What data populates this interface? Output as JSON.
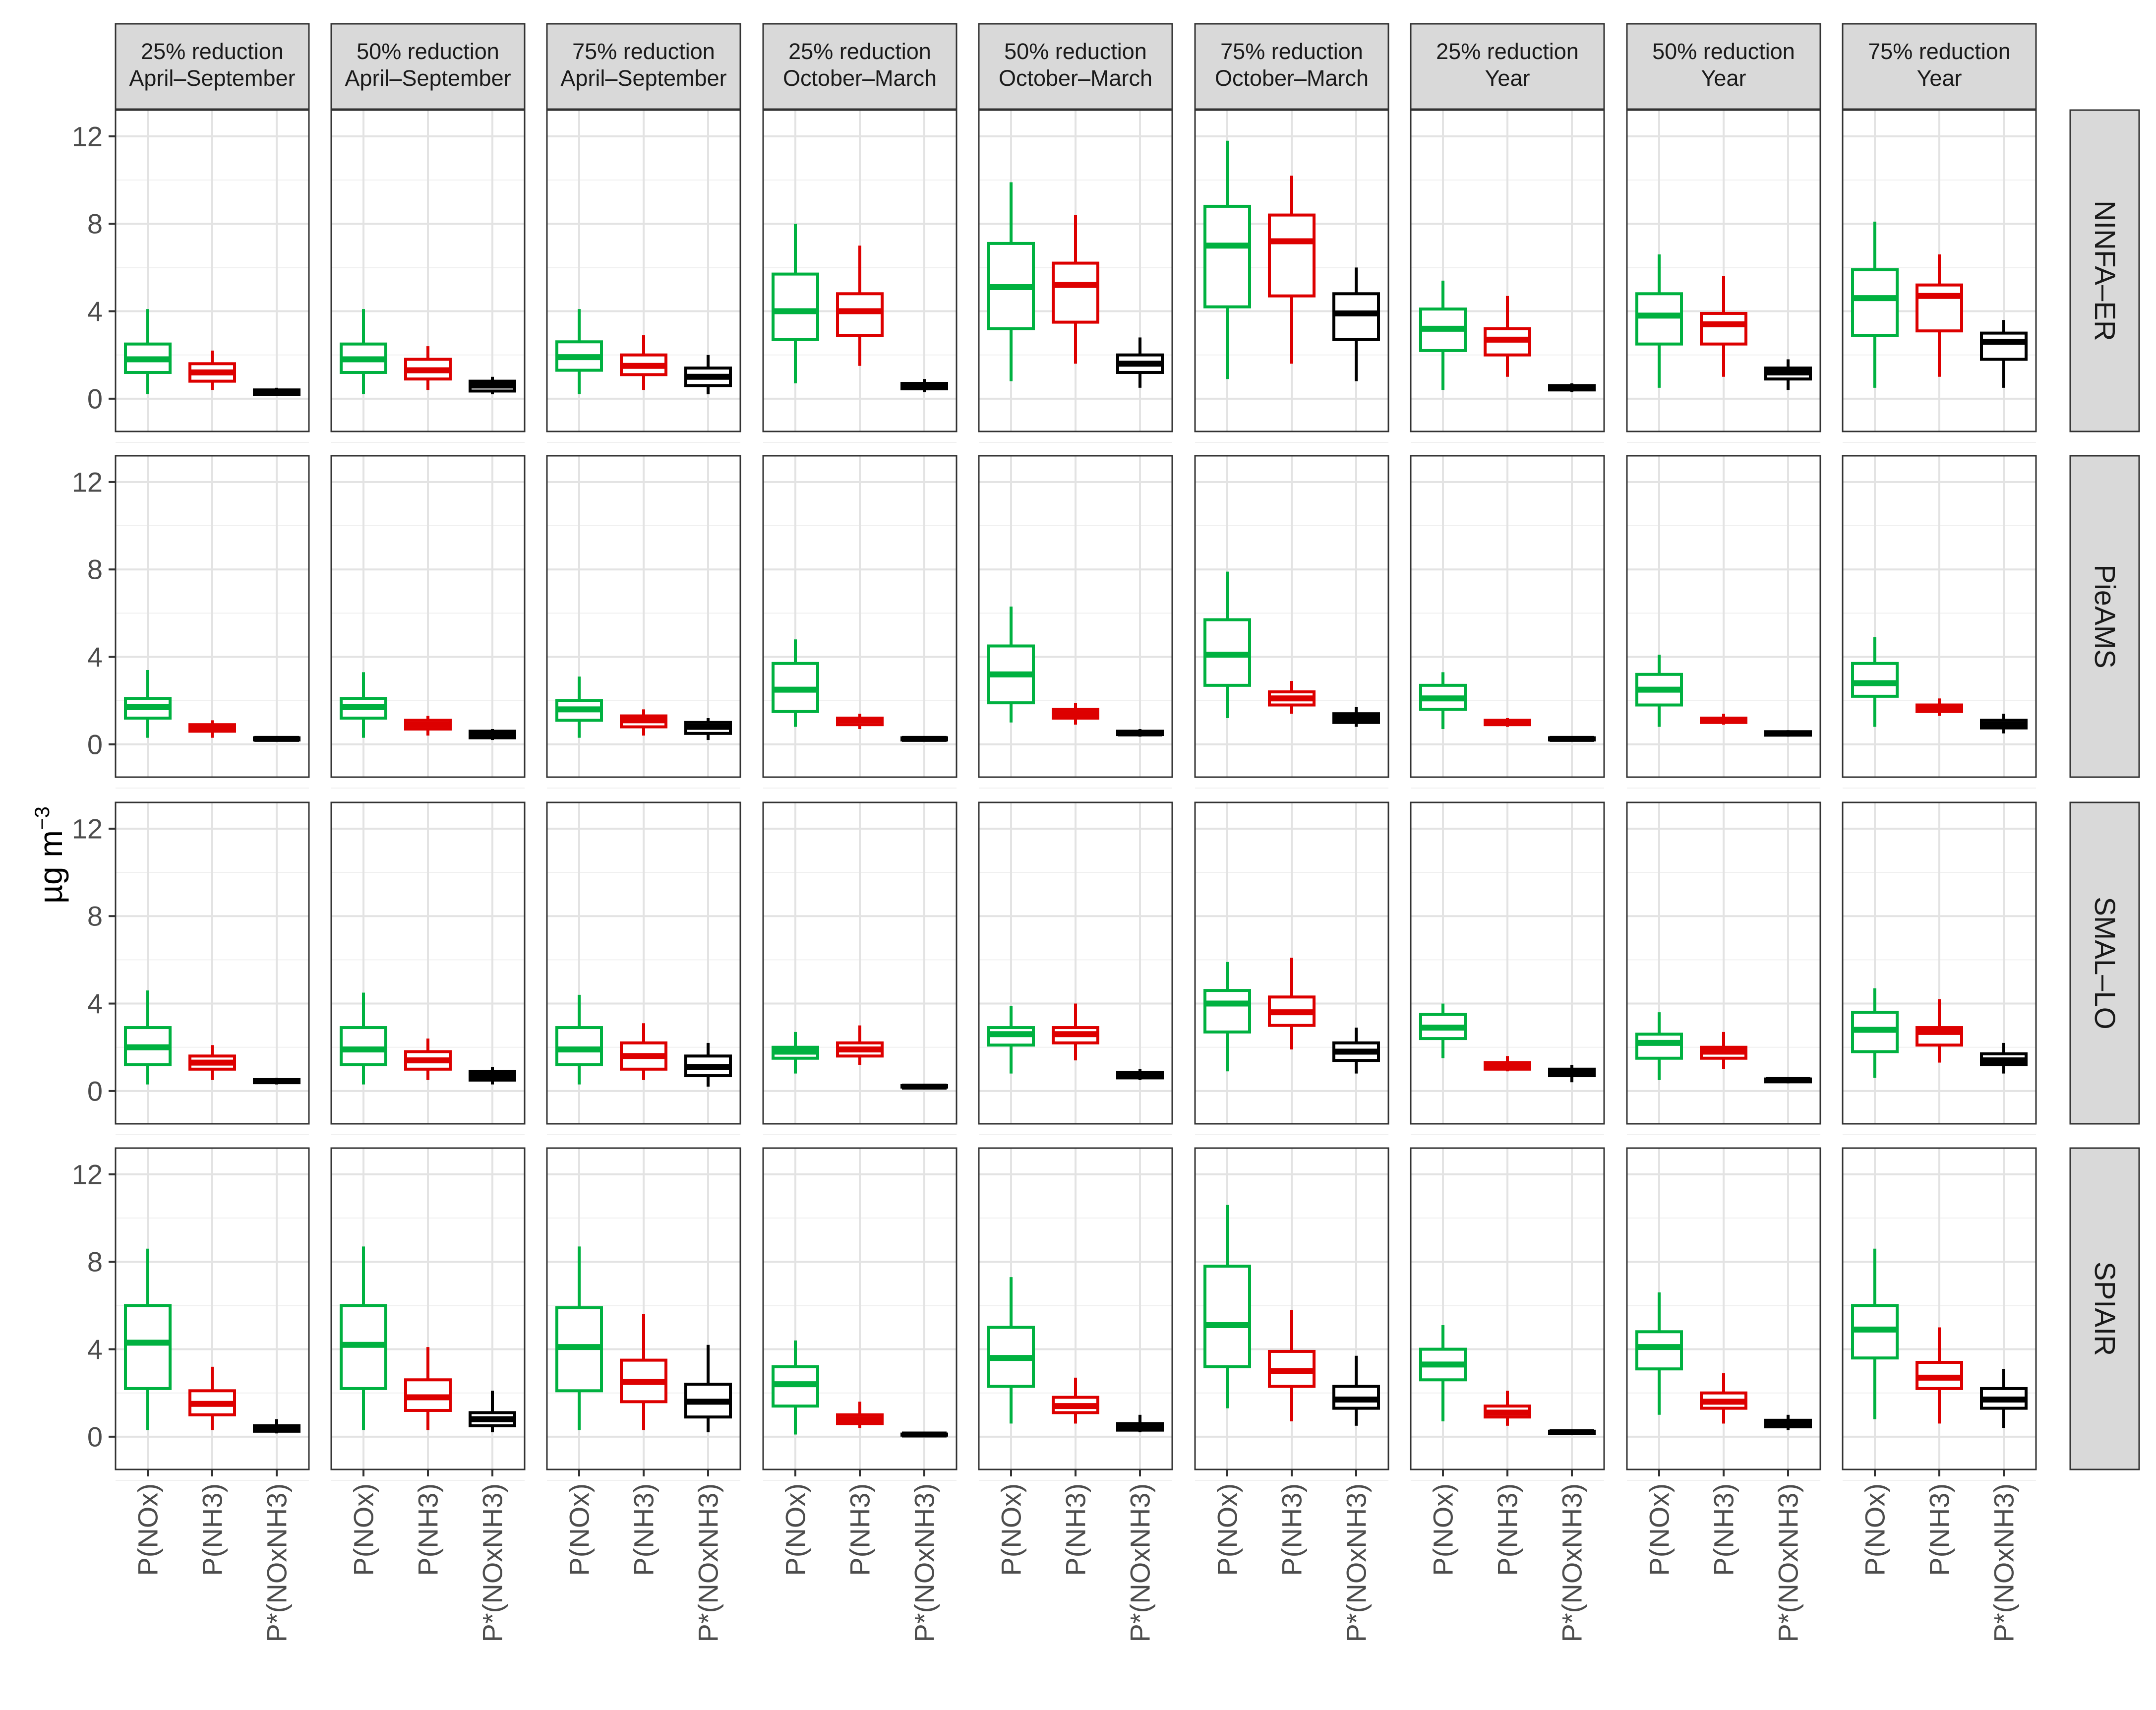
{
  "chart_data": {
    "type": "boxplot",
    "ylabel": "µg m",
    "ylabel_superscript": "−3",
    "ylim": [
      -1.5,
      13.2
    ],
    "yticks": [
      0,
      4,
      8,
      12
    ],
    "grid": true,
    "categories": [
      "P(NOx)",
      "P(NH3)",
      "P*(NOxNH3)"
    ],
    "colors": {
      "P(NOx)": "#00b140",
      "P(NH3)": "#dd0000",
      "P*(NOxNH3)": "#000000"
    },
    "columns": [
      [
        "25% reduction",
        "April–September"
      ],
      [
        "50% reduction",
        "April–September"
      ],
      [
        "75% reduction",
        "April–September"
      ],
      [
        "25% reduction",
        "October–March"
      ],
      [
        "50% reduction",
        "October–March"
      ],
      [
        "75% reduction",
        "October–March"
      ],
      [
        "25% reduction",
        "Year"
      ],
      [
        "50% reduction",
        "Year"
      ],
      [
        "75% reduction",
        "Year"
      ]
    ],
    "rows": [
      "NINFA–ER",
      "PieAMS",
      "SMAL–LO",
      "SPIAIR"
    ],
    "box_format": "[whisker_low, q1, median, q3, whisker_high]",
    "boxes": [
      [
        [
          [
            0.2,
            1.2,
            1.8,
            2.5,
            4.1
          ],
          [
            0.4,
            0.8,
            1.2,
            1.6,
            2.2
          ],
          [
            0.15,
            0.2,
            0.3,
            0.4,
            0.5
          ]
        ],
        [
          [
            0.2,
            1.2,
            1.8,
            2.5,
            4.1
          ],
          [
            0.4,
            0.9,
            1.3,
            1.8,
            2.4
          ],
          [
            0.2,
            0.35,
            0.6,
            0.8,
            1.0
          ]
        ],
        [
          [
            0.2,
            1.3,
            1.9,
            2.6,
            4.1
          ],
          [
            0.4,
            1.1,
            1.5,
            2.0,
            2.9
          ],
          [
            0.2,
            0.6,
            1.0,
            1.4,
            2.0
          ]
        ],
        [
          [
            0.7,
            2.7,
            4.0,
            5.7,
            8.0
          ],
          [
            1.5,
            2.9,
            4.0,
            4.8,
            7.0
          ],
          [
            0.3,
            0.45,
            0.6,
            0.7,
            0.9
          ]
        ],
        [
          [
            0.8,
            3.2,
            5.1,
            7.1,
            9.9
          ],
          [
            1.6,
            3.5,
            5.2,
            6.2,
            8.4
          ],
          [
            0.5,
            1.2,
            1.6,
            2.0,
            2.8
          ]
        ],
        [
          [
            0.9,
            4.2,
            7.0,
            8.8,
            11.8
          ],
          [
            1.6,
            4.7,
            7.2,
            8.4,
            10.2
          ],
          [
            0.8,
            2.7,
            3.9,
            4.8,
            6.0
          ]
        ],
        [
          [
            0.4,
            2.2,
            3.2,
            4.1,
            5.4
          ],
          [
            1.0,
            2.0,
            2.7,
            3.2,
            4.7
          ],
          [
            0.3,
            0.4,
            0.5,
            0.6,
            0.7
          ]
        ],
        [
          [
            0.5,
            2.5,
            3.8,
            4.8,
            6.6
          ],
          [
            1.0,
            2.5,
            3.4,
            3.9,
            5.6
          ],
          [
            0.4,
            0.9,
            1.2,
            1.4,
            1.8
          ]
        ],
        [
          [
            0.5,
            2.9,
            4.6,
            5.9,
            8.1
          ],
          [
            1.0,
            3.1,
            4.7,
            5.2,
            6.6
          ],
          [
            0.5,
            1.8,
            2.6,
            3.0,
            3.6
          ]
        ]
      ],
      [
        [
          [
            0.3,
            1.2,
            1.7,
            2.1,
            3.4
          ],
          [
            0.3,
            0.6,
            0.8,
            0.9,
            1.1
          ],
          [
            0.15,
            0.2,
            0.25,
            0.3,
            0.35
          ]
        ],
        [
          [
            0.3,
            1.2,
            1.7,
            2.1,
            3.3
          ],
          [
            0.4,
            0.7,
            0.9,
            1.1,
            1.3
          ],
          [
            0.2,
            0.3,
            0.45,
            0.6,
            0.7
          ]
        ],
        [
          [
            0.3,
            1.1,
            1.6,
            2.0,
            3.1
          ],
          [
            0.4,
            0.8,
            1.1,
            1.3,
            1.6
          ],
          [
            0.2,
            0.5,
            0.8,
            1.0,
            1.2
          ]
        ],
        [
          [
            0.8,
            1.5,
            2.5,
            3.7,
            4.8
          ],
          [
            0.7,
            0.9,
            1.1,
            1.2,
            1.4
          ],
          [
            0.15,
            0.2,
            0.25,
            0.3,
            0.35
          ]
        ],
        [
          [
            1.0,
            1.9,
            3.2,
            4.5,
            6.3
          ],
          [
            0.9,
            1.2,
            1.4,
            1.6,
            1.9
          ],
          [
            0.35,
            0.45,
            0.5,
            0.6,
            0.7
          ]
        ],
        [
          [
            1.2,
            2.7,
            4.1,
            5.7,
            7.9
          ],
          [
            1.4,
            1.8,
            2.1,
            2.4,
            2.9
          ],
          [
            0.8,
            1.0,
            1.2,
            1.4,
            1.7
          ]
        ],
        [
          [
            0.7,
            1.6,
            2.1,
            2.7,
            3.3
          ],
          [
            0.8,
            0.9,
            1.0,
            1.1,
            1.2
          ],
          [
            0.15,
            0.2,
            0.25,
            0.3,
            0.35
          ]
        ],
        [
          [
            0.8,
            1.8,
            2.5,
            3.2,
            4.1
          ],
          [
            0.9,
            1.0,
            1.1,
            1.2,
            1.4
          ],
          [
            0.35,
            0.42,
            0.5,
            0.58,
            0.65
          ]
        ],
        [
          [
            0.8,
            2.2,
            2.8,
            3.7,
            4.9
          ],
          [
            1.3,
            1.5,
            1.6,
            1.8,
            2.1
          ],
          [
            0.5,
            0.75,
            0.9,
            1.1,
            1.4
          ]
        ]
      ],
      [
        [
          [
            0.3,
            1.2,
            2.0,
            2.9,
            4.6
          ],
          [
            0.5,
            1.0,
            1.3,
            1.6,
            2.1
          ],
          [
            0.3,
            0.38,
            0.45,
            0.52,
            0.6
          ]
        ],
        [
          [
            0.3,
            1.2,
            1.9,
            2.9,
            4.5
          ],
          [
            0.5,
            1.0,
            1.4,
            1.8,
            2.4
          ],
          [
            0.3,
            0.5,
            0.7,
            0.9,
            1.1
          ]
        ],
        [
          [
            0.3,
            1.2,
            1.9,
            2.9,
            4.4
          ],
          [
            0.5,
            1.0,
            1.6,
            2.2,
            3.1
          ],
          [
            0.2,
            0.7,
            1.1,
            1.6,
            2.2
          ]
        ],
        [
          [
            0.8,
            1.5,
            1.8,
            2.0,
            2.7
          ],
          [
            1.2,
            1.6,
            1.9,
            2.2,
            3.0
          ],
          [
            0.15,
            0.18,
            0.2,
            0.25,
            0.3
          ]
        ],
        [
          [
            0.8,
            2.1,
            2.6,
            2.9,
            3.9
          ],
          [
            1.4,
            2.2,
            2.6,
            2.9,
            4.0
          ],
          [
            0.5,
            0.6,
            0.7,
            0.85,
            1.0
          ]
        ],
        [
          [
            0.9,
            2.7,
            4.0,
            4.6,
            5.9
          ],
          [
            1.9,
            3.0,
            3.6,
            4.3,
            6.1
          ],
          [
            0.8,
            1.4,
            1.8,
            2.2,
            2.9
          ]
        ],
        [
          [
            1.5,
            2.4,
            2.9,
            3.5,
            4.0
          ],
          [
            0.9,
            1.0,
            1.2,
            1.3,
            1.6
          ],
          [
            0.4,
            0.7,
            0.85,
            1.0,
            1.2
          ]
        ],
        [
          [
            0.5,
            1.5,
            2.2,
            2.6,
            3.6
          ],
          [
            1.0,
            1.5,
            1.8,
            2.0,
            2.7
          ],
          [
            0.35,
            0.42,
            0.5,
            0.55,
            0.6
          ]
        ],
        [
          [
            0.6,
            1.8,
            2.8,
            3.6,
            4.7
          ],
          [
            1.3,
            2.1,
            2.7,
            2.9,
            4.2
          ],
          [
            0.8,
            1.2,
            1.4,
            1.7,
            2.2
          ]
        ]
      ],
      [
        [
          [
            0.3,
            2.2,
            4.3,
            6.0,
            8.6
          ],
          [
            0.3,
            1.0,
            1.5,
            2.1,
            3.2
          ],
          [
            0.15,
            0.25,
            0.35,
            0.5,
            0.8
          ]
        ],
        [
          [
            0.3,
            2.2,
            4.2,
            6.0,
            8.7
          ],
          [
            0.3,
            1.2,
            1.8,
            2.6,
            4.1
          ],
          [
            0.2,
            0.5,
            0.8,
            1.1,
            2.1
          ]
        ],
        [
          [
            0.3,
            2.1,
            4.1,
            5.9,
            8.7
          ],
          [
            0.3,
            1.6,
            2.5,
            3.5,
            5.6
          ],
          [
            0.2,
            0.9,
            1.6,
            2.4,
            4.2
          ]
        ],
        [
          [
            0.1,
            1.4,
            2.4,
            3.2,
            4.4
          ],
          [
            0.4,
            0.6,
            0.8,
            1.0,
            1.6
          ],
          [
            0.05,
            0.07,
            0.1,
            0.12,
            0.15
          ]
        ],
        [
          [
            0.6,
            2.3,
            3.6,
            5.0,
            7.3
          ],
          [
            0.6,
            1.1,
            1.4,
            1.8,
            2.7
          ],
          [
            0.2,
            0.3,
            0.4,
            0.6,
            1.0
          ]
        ],
        [
          [
            1.3,
            3.2,
            5.1,
            7.8,
            10.6
          ],
          [
            0.7,
            2.3,
            3.0,
            3.9,
            5.8
          ],
          [
            0.5,
            1.3,
            1.7,
            2.3,
            3.7
          ]
        ],
        [
          [
            0.7,
            2.6,
            3.3,
            4.0,
            5.1
          ],
          [
            0.5,
            0.9,
            1.1,
            1.4,
            2.1
          ],
          [
            0.1,
            0.15,
            0.2,
            0.25,
            0.3
          ]
        ],
        [
          [
            1.0,
            3.1,
            4.1,
            4.8,
            6.6
          ],
          [
            0.6,
            1.3,
            1.6,
            2.0,
            2.9
          ],
          [
            0.3,
            0.45,
            0.6,
            0.75,
            1.0
          ]
        ],
        [
          [
            0.8,
            3.6,
            4.9,
            6.0,
            8.6
          ],
          [
            0.6,
            2.2,
            2.7,
            3.4,
            5.0
          ],
          [
            0.4,
            1.3,
            1.7,
            2.2,
            3.1
          ]
        ]
      ]
    ]
  }
}
